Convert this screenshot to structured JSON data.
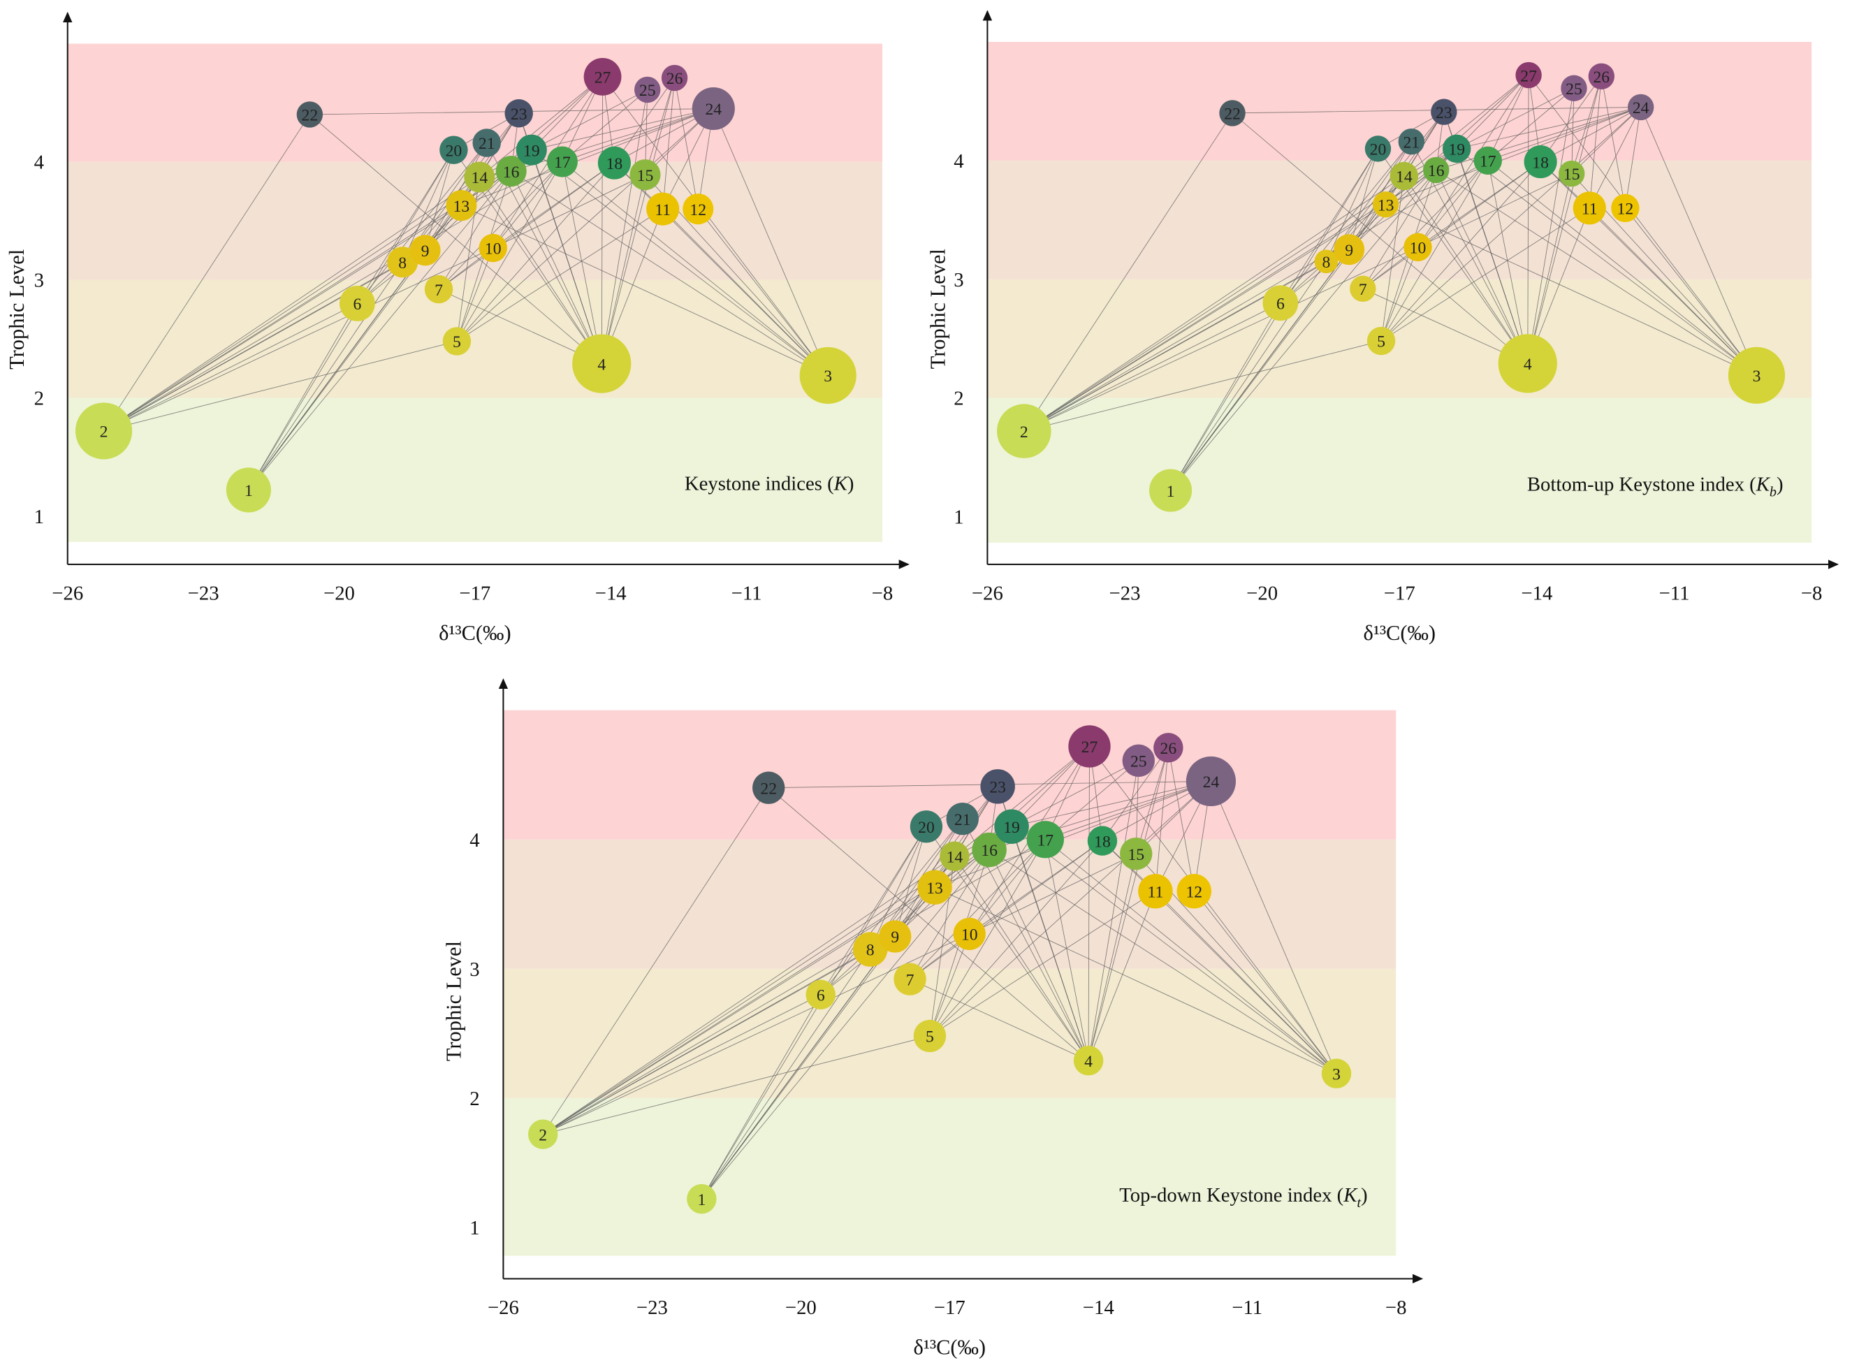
{
  "chart_data": {
    "type": "scatter",
    "description_kind": "food-web network",
    "xlabel": "δ¹³C(‰)",
    "ylabel": "Trophic Level",
    "xlim": [
      -26,
      -8
    ],
    "xticks": [
      -26,
      -23,
      -20,
      -17,
      -14,
      -11,
      -8
    ],
    "yticks": [
      1,
      2,
      3,
      4
    ],
    "bands": [
      {
        "from": 0.78,
        "to": 2,
        "color": "#eef4da"
      },
      {
        "from": 2,
        "to": 3,
        "color": "#f3ead0"
      },
      {
        "from": 3,
        "to": 4,
        "color": "#f3e1d4"
      },
      {
        "from": 4,
        "to": 5,
        "color": "#fdd3d3"
      }
    ],
    "nodes": [
      {
        "id": "1",
        "x": -22.0,
        "y": 1.22,
        "color": "#c8dc55"
      },
      {
        "id": "2",
        "x": -25.2,
        "y": 1.72,
        "color": "#c8dc55"
      },
      {
        "id": "3",
        "x": -9.2,
        "y": 2.19,
        "color": "#d4d438"
      },
      {
        "id": "4",
        "x": -14.2,
        "y": 2.29,
        "color": "#d4d438"
      },
      {
        "id": "5",
        "x": -17.4,
        "y": 2.48,
        "color": "#d8d035"
      },
      {
        "id": "6",
        "x": -19.6,
        "y": 2.8,
        "color": "#d8d035"
      },
      {
        "id": "7",
        "x": -17.8,
        "y": 2.92,
        "color": "#dccc30"
      },
      {
        "id": "8",
        "x": -18.6,
        "y": 3.15,
        "color": "#e2c418"
      },
      {
        "id": "9",
        "x": -18.1,
        "y": 3.25,
        "color": "#e6c010"
      },
      {
        "id": "10",
        "x": -16.6,
        "y": 3.27,
        "color": "#e8c008"
      },
      {
        "id": "11",
        "x": -12.85,
        "y": 3.6,
        "color": "#eac200"
      },
      {
        "id": "12",
        "x": -12.07,
        "y": 3.6,
        "color": "#eec400"
      },
      {
        "id": "13",
        "x": -17.3,
        "y": 3.63,
        "color": "#e2c010"
      },
      {
        "id": "14",
        "x": -16.9,
        "y": 3.87,
        "color": "#aabb38"
      },
      {
        "id": "15",
        "x": -13.24,
        "y": 3.89,
        "color": "#8cb840"
      },
      {
        "id": "16",
        "x": -16.2,
        "y": 3.92,
        "color": "#6aac42"
      },
      {
        "id": "17",
        "x": -15.07,
        "y": 4.0,
        "color": "#44a24e"
      },
      {
        "id": "18",
        "x": -13.92,
        "y": 3.99,
        "color": "#2f9a5a"
      },
      {
        "id": "19",
        "x": -15.75,
        "y": 4.1,
        "color": "#2e8a62"
      },
      {
        "id": "20",
        "x": -17.47,
        "y": 4.1,
        "color": "#3a7a6a"
      },
      {
        "id": "21",
        "x": -16.74,
        "y": 4.16,
        "color": "#466c6c"
      },
      {
        "id": "22",
        "x": -20.65,
        "y": 4.4,
        "color": "#4c5c62"
      },
      {
        "id": "23",
        "x": -16.03,
        "y": 4.41,
        "color": "#4a526a"
      },
      {
        "id": "24",
        "x": -11.73,
        "y": 4.45,
        "color": "#7a6482"
      },
      {
        "id": "25",
        "x": -13.19,
        "y": 4.61,
        "color": "#825c84"
      },
      {
        "id": "26",
        "x": -12.59,
        "y": 4.71,
        "color": "#8a4e7e"
      },
      {
        "id": "27",
        "x": -14.18,
        "y": 4.72,
        "color": "#8a3a6c"
      }
    ],
    "edges": [
      [
        "1",
        "6"
      ],
      [
        "1",
        "8"
      ],
      [
        "1",
        "9"
      ],
      [
        "1",
        "13"
      ],
      [
        "1",
        "14"
      ],
      [
        "1",
        "16"
      ],
      [
        "1",
        "20"
      ],
      [
        "2",
        "22"
      ],
      [
        "2",
        "6"
      ],
      [
        "2",
        "5"
      ],
      [
        "2",
        "8"
      ],
      [
        "2",
        "9"
      ],
      [
        "2",
        "13"
      ],
      [
        "2",
        "14"
      ],
      [
        "2",
        "16"
      ],
      [
        "2",
        "17"
      ],
      [
        "2",
        "19"
      ],
      [
        "2",
        "10"
      ],
      [
        "3",
        "11"
      ],
      [
        "3",
        "12"
      ],
      [
        "3",
        "15"
      ],
      [
        "3",
        "18"
      ],
      [
        "3",
        "17"
      ],
      [
        "3",
        "24"
      ],
      [
        "3",
        "27"
      ],
      [
        "3",
        "19"
      ],
      [
        "3",
        "13"
      ],
      [
        "3",
        "16"
      ],
      [
        "4",
        "7"
      ],
      [
        "4",
        "14"
      ],
      [
        "4",
        "16"
      ],
      [
        "4",
        "20"
      ],
      [
        "4",
        "17"
      ],
      [
        "4",
        "19"
      ],
      [
        "4",
        "21"
      ],
      [
        "4",
        "23"
      ],
      [
        "4",
        "27"
      ],
      [
        "4",
        "25"
      ],
      [
        "4",
        "26"
      ],
      [
        "4",
        "11"
      ],
      [
        "4",
        "15"
      ],
      [
        "4",
        "22"
      ],
      [
        "5",
        "10"
      ],
      [
        "5",
        "14"
      ],
      [
        "5",
        "16"
      ],
      [
        "5",
        "17"
      ],
      [
        "5",
        "11"
      ],
      [
        "5",
        "18"
      ],
      [
        "5",
        "24"
      ],
      [
        "6",
        "8"
      ],
      [
        "6",
        "9"
      ],
      [
        "6",
        "20"
      ],
      [
        "6",
        "21"
      ],
      [
        "7",
        "10"
      ],
      [
        "7",
        "16"
      ],
      [
        "7",
        "17"
      ],
      [
        "7",
        "18"
      ],
      [
        "8",
        "14"
      ],
      [
        "8",
        "19"
      ],
      [
        "8",
        "20"
      ],
      [
        "8",
        "21"
      ],
      [
        "8",
        "23"
      ],
      [
        "9",
        "14"
      ],
      [
        "9",
        "19"
      ],
      [
        "9",
        "20"
      ],
      [
        "9",
        "21"
      ],
      [
        "9",
        "23"
      ],
      [
        "10",
        "17"
      ],
      [
        "10",
        "18"
      ],
      [
        "10",
        "15"
      ],
      [
        "10",
        "27"
      ],
      [
        "11",
        "18"
      ],
      [
        "11",
        "24"
      ],
      [
        "11",
        "26"
      ],
      [
        "12",
        "24"
      ],
      [
        "12",
        "26"
      ],
      [
        "13",
        "19"
      ],
      [
        "13",
        "23"
      ],
      [
        "13",
        "24"
      ],
      [
        "13",
        "27"
      ],
      [
        "14",
        "23"
      ],
      [
        "14",
        "27"
      ],
      [
        "14",
        "25"
      ],
      [
        "15",
        "24"
      ],
      [
        "15",
        "26"
      ],
      [
        "15",
        "25"
      ],
      [
        "16",
        "23"
      ],
      [
        "16",
        "27"
      ],
      [
        "16",
        "24"
      ],
      [
        "17",
        "27"
      ],
      [
        "17",
        "24"
      ],
      [
        "17",
        "25"
      ],
      [
        "18",
        "24"
      ],
      [
        "18",
        "27"
      ],
      [
        "18",
        "26"
      ],
      [
        "19",
        "24"
      ],
      [
        "19",
        "23"
      ],
      [
        "20",
        "23"
      ],
      [
        "22",
        "24"
      ]
    ],
    "panels": [
      {
        "label_main": "Keystone indices (",
        "label_sym": "K",
        "label_sub": "",
        "label_end": ")",
        "relative_index": [
          0.61,
          0.89,
          0.89,
          0.94,
          0.22,
          0.39,
          0.22,
          0.28,
          0.28,
          0.22,
          0.33,
          0.28,
          0.28,
          0.28,
          0.28,
          0.28,
          0.28,
          0.33,
          0.28,
          0.22,
          0.22,
          0.17,
          0.22,
          0.56,
          0.17,
          0.17,
          0.44
        ]
      },
      {
        "label_main": "Bottom-up Keystone index (",
        "label_sym": "K",
        "label_sub": "b",
        "label_end": ")",
        "relative_index": [
          0.56,
          0.83,
          0.89,
          0.94,
          0.22,
          0.39,
          0.17,
          0.11,
          0.28,
          0.22,
          0.33,
          0.22,
          0.17,
          0.22,
          0.17,
          0.17,
          0.22,
          0.33,
          0.22,
          0.17,
          0.17,
          0.17,
          0.17,
          0.17,
          0.17,
          0.17,
          0.17
        ]
      },
      {
        "label_main": "Top-down Keystone index (",
        "label_sym": "K",
        "label_sub": "t",
        "label_end": ")",
        "relative_index": [
          0.22,
          0.22,
          0.22,
          0.22,
          0.28,
          0.22,
          0.28,
          0.33,
          0.28,
          0.28,
          0.33,
          0.33,
          0.33,
          0.22,
          0.28,
          0.33,
          0.39,
          0.22,
          0.33,
          0.28,
          0.28,
          0.28,
          0.33,
          0.67,
          0.28,
          0.22,
          0.5
        ]
      }
    ]
  }
}
